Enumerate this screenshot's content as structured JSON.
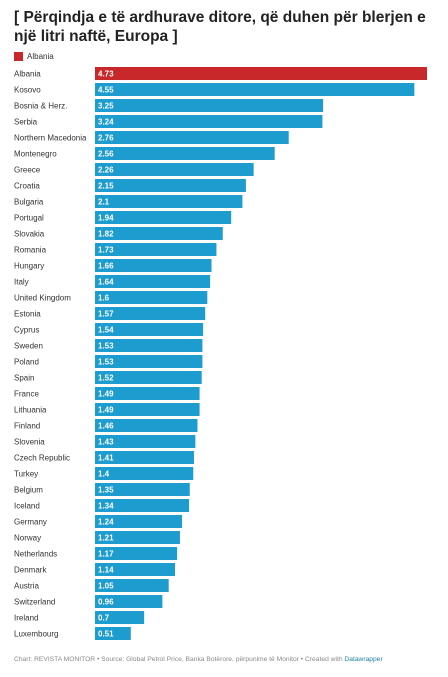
{
  "chart_data": {
    "type": "bar",
    "orientation": "horizontal",
    "title": "[ Përqindja e të ardhurave ditore, që duhen për blerjen e një litri naftë, Europa ]",
    "legend": [
      {
        "label": "Albania",
        "color": "#c8282a"
      }
    ],
    "highlight": "Albania",
    "colors": {
      "default": "#1d9ccf",
      "highlight": "#c8282a"
    },
    "grid": false,
    "xlim": [
      0,
      4.73
    ],
    "categories": [
      "Albania",
      "Kosovo",
      "Bosnia & Herz.",
      "Serbia",
      "Northern Macedonia",
      "Montenegro",
      "Greece",
      "Croatia",
      "Bulgaria",
      "Portugal",
      "Slovakia",
      "Romania",
      "Hungary",
      "Italy",
      "United Kingdom",
      "Estonia",
      "Cyprus",
      "Sweden",
      "Poland",
      "Spain",
      "France",
      "Lithuania",
      "Finland",
      "Slovenia",
      "Czech Republic",
      "Turkey",
      "Belgium",
      "Iceland",
      "Germany",
      "Norway",
      "Netherlands",
      "Denmark",
      "Austria",
      "Switzerland",
      "Ireland",
      "Luxembourg"
    ],
    "values": [
      4.73,
      4.55,
      3.25,
      3.24,
      2.76,
      2.56,
      2.26,
      2.15,
      2.1,
      1.94,
      1.82,
      1.73,
      1.66,
      1.64,
      1.6,
      1.57,
      1.54,
      1.53,
      1.53,
      1.52,
      1.49,
      1.49,
      1.46,
      1.43,
      1.41,
      1.4,
      1.35,
      1.34,
      1.24,
      1.21,
      1.17,
      1.14,
      1.05,
      0.96,
      0.7,
      0.51
    ],
    "labels": [
      "4.73",
      "4.55",
      "3.25",
      "3.24",
      "2.76",
      "2.56",
      "2.26",
      "2.15",
      "2.1",
      "1.94",
      "1.82",
      "1.73",
      "1.66",
      "1.64",
      "1.6",
      "1.57",
      "1.54",
      "1.53",
      "1.53",
      "1.52",
      "1.49",
      "1.49",
      "1.46",
      "1.43",
      "1.41",
      "1.4",
      "1.35",
      "1.34",
      "1.24",
      "1.21",
      "1.17",
      "1.14",
      "1.05",
      "0.96",
      "0.7",
      "0.51"
    ]
  },
  "footer": {
    "text": "Chart: REVISTA MONITOR • Source: Global Petrol Price, Banka Botërore, përpunime të Monitor • Created with ",
    "brand": "Datawrapper"
  }
}
